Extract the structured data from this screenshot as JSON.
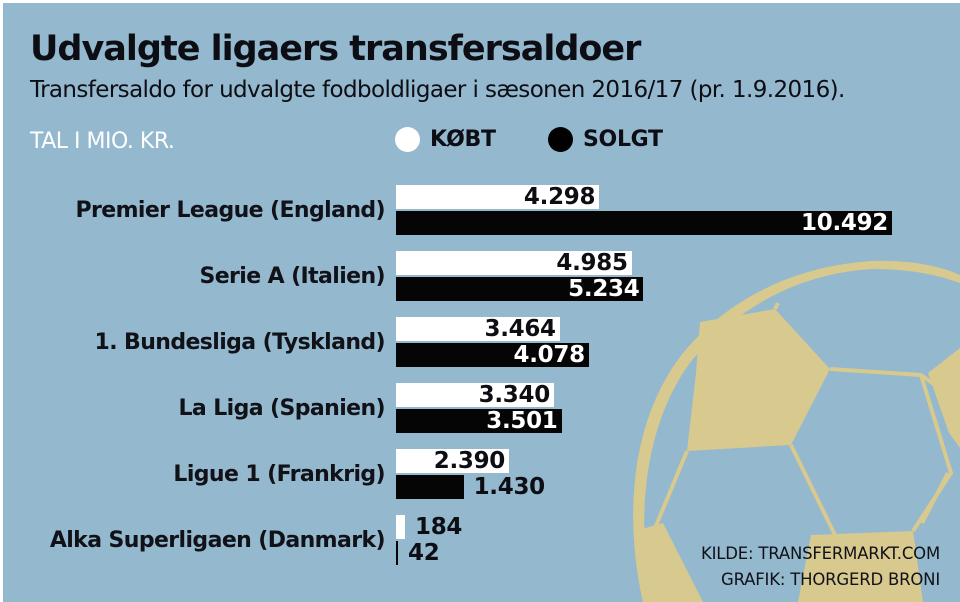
{
  "header": {
    "title": "Udvalgte ligaers transfersaldoer",
    "subtitle": "Transfersaldo for udvalgte fodboldligaer i sæsonen 2016/17 (pr. 1.9.2016).",
    "unit_label": "TAL I MIO. KR."
  },
  "legend": [
    {
      "label": "KØBT",
      "color": "#ffffff",
      "icon": "circle-dot"
    },
    {
      "label": "SOLGT",
      "color": "#000000",
      "icon": "circle-dot"
    }
  ],
  "credits": {
    "source": "KILDE: TRANSFERMARKT.COM",
    "graphic": "GRAFIK: THORGERD BRONI"
  },
  "colors": {
    "background": "#94b8cd",
    "bought": "#ffffff",
    "sold": "#050505",
    "ball": "#d8c98f"
  },
  "chart_data": {
    "type": "bar",
    "orientation": "horizontal",
    "title": "Udvalgte ligaers transfersaldoer",
    "subtitle": "Transfersaldo for udvalgte fodboldligaer i sæsonen 2016/17 (pr. 1.9.2016).",
    "xlabel": "",
    "ylabel": "",
    "unit": "TAL I MIO. KR.",
    "categories": [
      "Premier League (England)",
      "Serie A (Italien)",
      "1. Bundesliga (Tyskland)",
      "La Liga (Spanien)",
      "Ligue 1 (Frankrig)",
      "Alka Superligaen (Danmark)"
    ],
    "series": [
      {
        "name": "KØBT",
        "values": [
          4298,
          4985,
          3464,
          3340,
          2390,
          184
        ],
        "labels": [
          "4.298",
          "4.985",
          "3.464",
          "3.340",
          "2.390",
          "184"
        ]
      },
      {
        "name": "SOLGT",
        "values": [
          10492,
          5234,
          4078,
          3501,
          1430,
          42
        ],
        "labels": [
          "10.492",
          "5.234",
          "4.078",
          "3.501",
          "1.430",
          "42"
        ]
      }
    ],
    "xlim": [
      0,
      10492
    ],
    "grid": false,
    "legend_position": "top"
  }
}
